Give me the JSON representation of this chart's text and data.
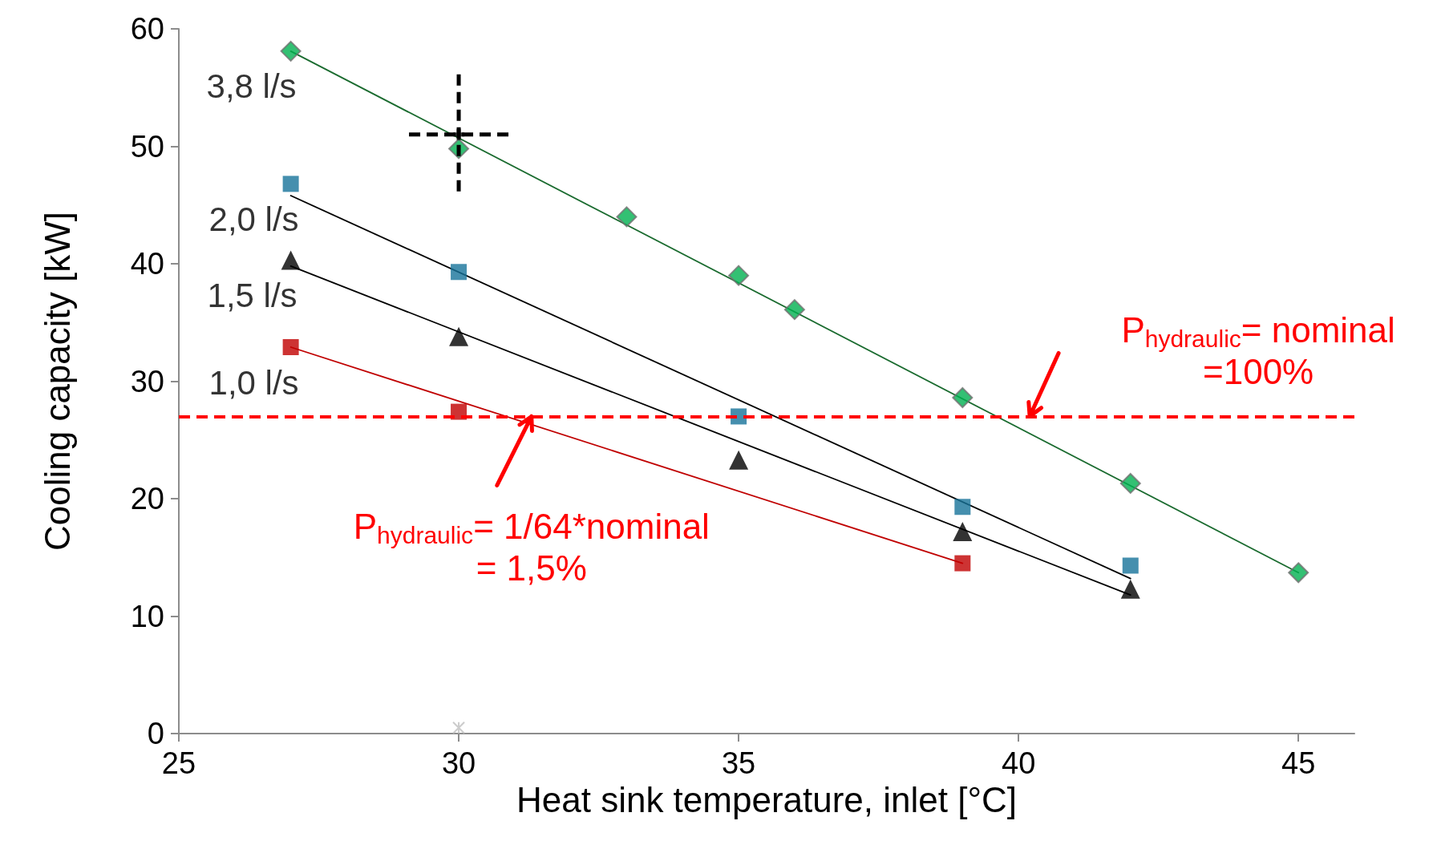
{
  "chart_data": {
    "type": "scatter",
    "xlabel": "Heat sink temperature, inlet [°C]",
    "ylabel": "Cooling capacity [kW]",
    "xlim": [
      25,
      46
    ],
    "xticks": [
      25,
      30,
      35,
      40,
      45
    ],
    "ylim": [
      0,
      60
    ],
    "yticks": [
      0,
      10,
      20,
      30,
      40,
      50,
      60
    ],
    "grid": false,
    "legend": false,
    "series": [
      {
        "name": "3,8 l/s",
        "marker": "diamond",
        "color": "#00b050",
        "x": [
          27,
          30,
          33,
          35,
          36,
          39,
          42,
          45
        ],
        "values": [
          58.1,
          49.8,
          44,
          39,
          36.1,
          28.6,
          21.3,
          13.7
        ]
      },
      {
        "name": "2,0 l/s",
        "marker": "square",
        "color": "#17739a",
        "x": [
          27,
          30,
          35,
          39,
          42
        ],
        "values": [
          46.8,
          39.3,
          27,
          19.3,
          14.3
        ]
      },
      {
        "name": "1,5 l/s",
        "marker": "triangle",
        "color": "#000000",
        "x": [
          27,
          30,
          35,
          39,
          42
        ],
        "values": [
          40.3,
          33.8,
          23.3,
          17.2,
          12.3
        ]
      },
      {
        "name": "1,0 l/s",
        "marker": "square",
        "color": "#c00000",
        "x": [
          27,
          30,
          39
        ],
        "values": [
          32.9,
          27.4,
          14.5
        ]
      },
      {
        "type": "line",
        "marker": "none",
        "color": "#1a6b2f",
        "x": [
          27,
          45
        ],
        "values": [
          58.1,
          13.7
        ]
      },
      {
        "type": "line",
        "marker": "none",
        "color": "#000000",
        "x": [
          27,
          42
        ],
        "values": [
          45.8,
          13.2
        ]
      },
      {
        "type": "line",
        "marker": "none",
        "color": "#000000",
        "x": [
          27,
          42
        ],
        "values": [
          39.8,
          11.8
        ]
      },
      {
        "type": "line",
        "marker": "none",
        "color": "#c00000",
        "x": [
          27,
          39
        ],
        "values": [
          32.9,
          14.5
        ]
      },
      {
        "marker": "cross",
        "line_style": "dashed",
        "color": "#000000",
        "x": [
          30
        ],
        "values": [
          51
        ]
      },
      {
        "marker": "cross",
        "color": "#bfbfbf",
        "x": [
          30
        ],
        "values": [
          0.5
        ]
      }
    ],
    "ref_lines": [
      {
        "axis": "y",
        "value": 27,
        "color": "#ff0000",
        "line_style": "dashed"
      }
    ],
    "annotations": [
      {
        "text": "P$_{hydraulic}$= nominal\n=100%",
        "x": 40.2,
        "y": 27
      },
      {
        "text": "P$_{hydraulic}$= 1/64*nominal\n= 1,5%",
        "x": 31.3,
        "y": 27
      }
    ]
  }
}
